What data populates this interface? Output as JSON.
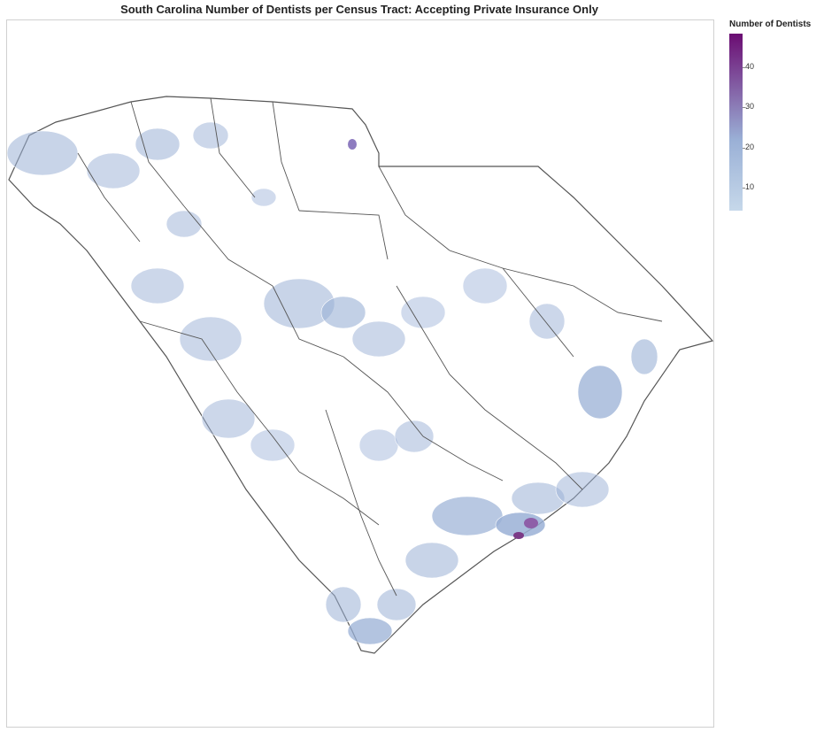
{
  "title": "South Carolina Number of Dentists per Census Tract: Accepting Private Insurance Only",
  "legend": {
    "title": "Number of Dentists",
    "min": 0,
    "max": 45,
    "ticks": [
      "10",
      "20",
      "30",
      "40"
    ],
    "tick_values": [
      10,
      20,
      30,
      40
    ],
    "color_low": "#c6d8ea",
    "color_mid": "#9ab0d6",
    "color_high": "#6b0c72"
  },
  "map": {
    "region": "South Carolina",
    "unit": "census tract",
    "outline_color": "#555555",
    "no_data_color": "#ffffff"
  }
}
